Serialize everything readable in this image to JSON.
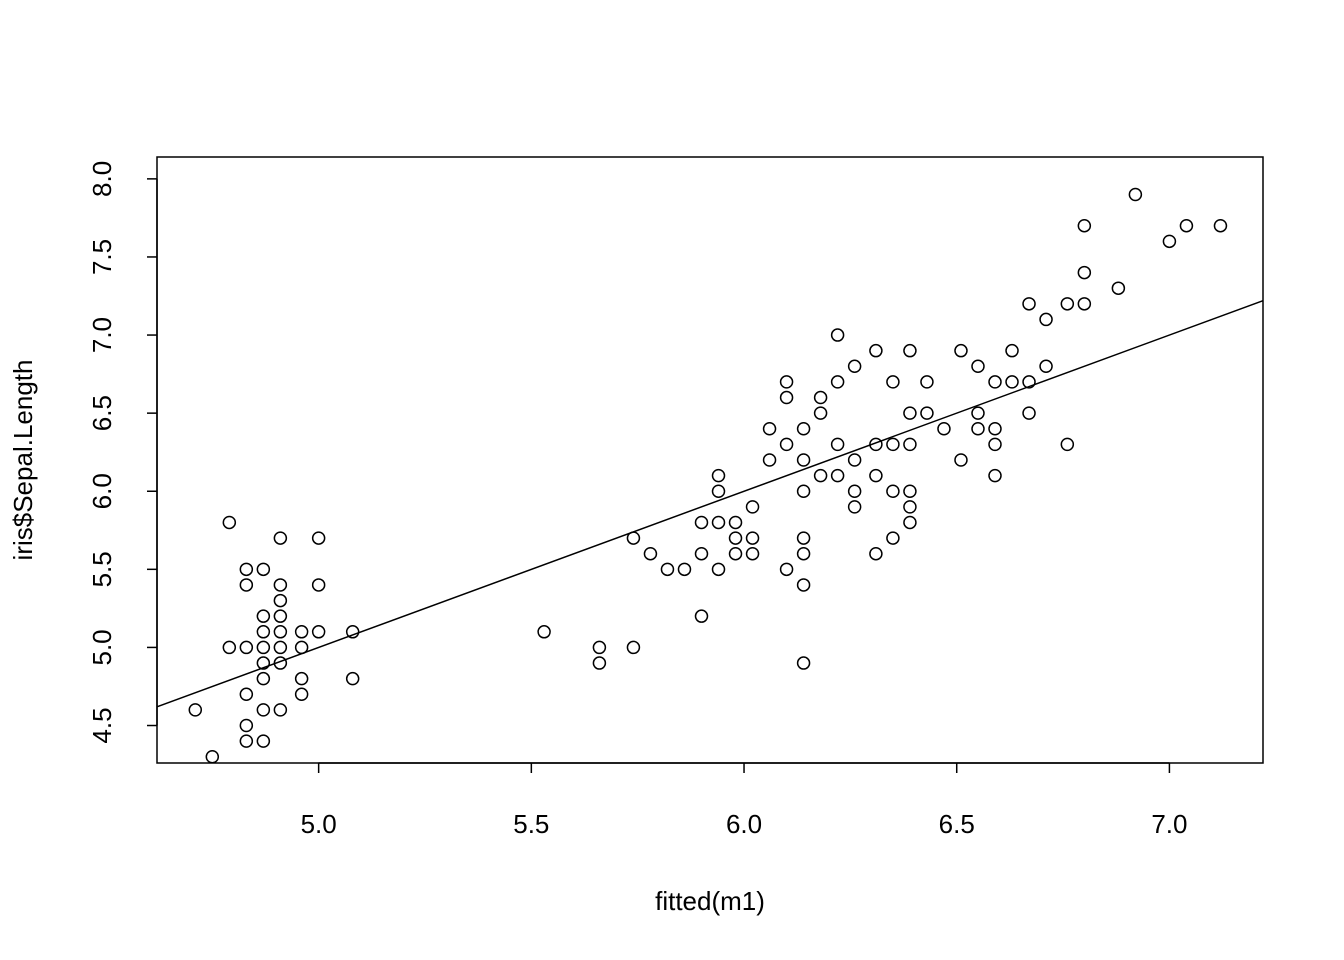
{
  "chart_data": {
    "type": "scatter",
    "title": "",
    "xlabel": "fitted(m1)",
    "ylabel": "iris$Sepal.Length",
    "xlim": [
      4.62,
      7.22
    ],
    "ylim": [
      4.26,
      8.14
    ],
    "xticks": [
      5.0,
      5.5,
      6.0,
      6.5,
      7.0
    ],
    "xtick_labels": [
      "5.0",
      "5.5",
      "6.0",
      "6.5",
      "7.0"
    ],
    "yticks": [
      4.5,
      5.0,
      5.5,
      6.0,
      6.5,
      7.0,
      7.5,
      8.0
    ],
    "ytick_labels": [
      "4.5",
      "5.0",
      "5.5",
      "6.0",
      "6.5",
      "7.0",
      "7.5",
      "8.0"
    ],
    "grid": false,
    "legend": "none",
    "marker": "open-circle",
    "reference_line": {
      "slope": 1,
      "intercept": 0
    },
    "points": [
      [
        4.71,
        4.6
      ],
      [
        4.75,
        4.3
      ],
      [
        4.79,
        5.8
      ],
      [
        4.79,
        5.0
      ],
      [
        4.83,
        5.5
      ],
      [
        4.83,
        5.4
      ],
      [
        4.83,
        5.0
      ],
      [
        4.83,
        4.7
      ],
      [
        4.83,
        4.5
      ],
      [
        4.83,
        4.4
      ],
      [
        4.87,
        5.5
      ],
      [
        4.87,
        5.2
      ],
      [
        4.87,
        5.1
      ],
      [
        4.87,
        5.0
      ],
      [
        4.87,
        4.9
      ],
      [
        4.87,
        4.8
      ],
      [
        4.87,
        4.6
      ],
      [
        4.87,
        4.4
      ],
      [
        4.91,
        5.7
      ],
      [
        4.91,
        5.4
      ],
      [
        4.91,
        5.3
      ],
      [
        4.91,
        5.2
      ],
      [
        4.91,
        5.1
      ],
      [
        4.91,
        5.0
      ],
      [
        4.91,
        4.9
      ],
      [
        4.91,
        4.6
      ],
      [
        4.96,
        5.1
      ],
      [
        4.96,
        5.0
      ],
      [
        4.96,
        4.8
      ],
      [
        4.96,
        4.7
      ],
      [
        5.0,
        5.7
      ],
      [
        5.0,
        5.4
      ],
      [
        5.0,
        5.1
      ],
      [
        5.08,
        5.1
      ],
      [
        5.08,
        4.8
      ],
      [
        5.53,
        5.1
      ],
      [
        5.66,
        5.0
      ],
      [
        5.66,
        4.9
      ],
      [
        5.74,
        5.7
      ],
      [
        5.74,
        5.0
      ],
      [
        5.78,
        5.6
      ],
      [
        5.82,
        5.5
      ],
      [
        5.86,
        5.5
      ],
      [
        5.9,
        5.8
      ],
      [
        5.9,
        5.6
      ],
      [
        5.9,
        5.2
      ],
      [
        5.94,
        6.1
      ],
      [
        5.94,
        6.0
      ],
      [
        5.94,
        5.8
      ],
      [
        5.94,
        5.5
      ],
      [
        5.98,
        5.8
      ],
      [
        5.98,
        5.7
      ],
      [
        5.98,
        5.6
      ],
      [
        6.02,
        5.9
      ],
      [
        6.02,
        5.7
      ],
      [
        6.02,
        5.6
      ],
      [
        6.06,
        6.4
      ],
      [
        6.06,
        6.2
      ],
      [
        6.1,
        6.7
      ],
      [
        6.1,
        6.6
      ],
      [
        6.1,
        6.3
      ],
      [
        6.1,
        5.5
      ],
      [
        6.14,
        6.4
      ],
      [
        6.14,
        6.2
      ],
      [
        6.14,
        6.0
      ],
      [
        6.14,
        5.7
      ],
      [
        6.14,
        5.6
      ],
      [
        6.14,
        5.4
      ],
      [
        6.14,
        4.9
      ],
      [
        6.18,
        6.6
      ],
      [
        6.18,
        6.5
      ],
      [
        6.18,
        6.1
      ],
      [
        6.22,
        7.0
      ],
      [
        6.22,
        6.7
      ],
      [
        6.22,
        6.3
      ],
      [
        6.22,
        6.1
      ],
      [
        6.26,
        6.8
      ],
      [
        6.26,
        6.2
      ],
      [
        6.26,
        6.0
      ],
      [
        6.26,
        5.9
      ],
      [
        6.31,
        6.9
      ],
      [
        6.31,
        6.3
      ],
      [
        6.31,
        6.1
      ],
      [
        6.31,
        5.6
      ],
      [
        6.35,
        6.7
      ],
      [
        6.35,
        6.3
      ],
      [
        6.35,
        6.0
      ],
      [
        6.35,
        5.7
      ],
      [
        6.39,
        6.9
      ],
      [
        6.39,
        6.5
      ],
      [
        6.39,
        6.3
      ],
      [
        6.39,
        6.0
      ],
      [
        6.39,
        5.9
      ],
      [
        6.39,
        5.8
      ],
      [
        6.43,
        6.7
      ],
      [
        6.43,
        6.5
      ],
      [
        6.47,
        6.4
      ],
      [
        6.51,
        6.9
      ],
      [
        6.51,
        6.2
      ],
      [
        6.55,
        6.8
      ],
      [
        6.55,
        6.5
      ],
      [
        6.55,
        6.4
      ],
      [
        6.59,
        6.7
      ],
      [
        6.59,
        6.4
      ],
      [
        6.59,
        6.3
      ],
      [
        6.59,
        6.1
      ],
      [
        6.63,
        6.9
      ],
      [
        6.63,
        6.7
      ],
      [
        6.67,
        7.2
      ],
      [
        6.67,
        6.7
      ],
      [
        6.67,
        6.5
      ],
      [
        6.71,
        7.1
      ],
      [
        6.71,
        6.8
      ],
      [
        6.76,
        7.2
      ],
      [
        6.76,
        6.3
      ],
      [
        6.8,
        7.7
      ],
      [
        6.8,
        7.4
      ],
      [
        6.8,
        7.2
      ],
      [
        6.88,
        7.3
      ],
      [
        6.92,
        7.9
      ],
      [
        7.0,
        7.6
      ],
      [
        7.04,
        7.7
      ],
      [
        7.12,
        7.7
      ]
    ]
  }
}
